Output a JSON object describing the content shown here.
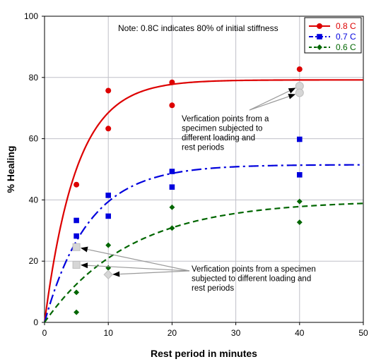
{
  "chart_data": {
    "type": "scatter",
    "xlabel": "Rest period in minutes",
    "ylabel": "% Healing",
    "xlim": [
      0,
      50
    ],
    "ylim": [
      0,
      100
    ],
    "xticks": [
      0,
      10,
      20,
      30,
      40,
      50
    ],
    "yticks": [
      0,
      20,
      40,
      60,
      80,
      100
    ],
    "grid": true,
    "legend_position": "top-right",
    "note": "Note: 0.8C indicates 80% of initial stiffness",
    "series": [
      {
        "name": "0.8 C",
        "color": "#dd0000",
        "marker": "circle",
        "line_style": "solid",
        "points": [
          {
            "x": 5,
            "y": 45.0
          },
          {
            "x": 10,
            "y": 75.7
          },
          {
            "x": 10,
            "y": 63.3
          },
          {
            "x": 20,
            "y": 78.4
          },
          {
            "x": 20,
            "y": 70.9
          },
          {
            "x": 40,
            "y": 82.7
          }
        ],
        "fit": {
          "asymptote": 79.2,
          "rate": 0.2
        }
      },
      {
        "name": "0.7 C",
        "color": "#0000dd",
        "marker": "square",
        "line_style": "dashdot",
        "points": [
          {
            "x": 5,
            "y": 33.3
          },
          {
            "x": 5,
            "y": 28.2
          },
          {
            "x": 10,
            "y": 41.5
          },
          {
            "x": 10,
            "y": 34.7
          },
          {
            "x": 20,
            "y": 49.3
          },
          {
            "x": 20,
            "y": 44.2
          },
          {
            "x": 40,
            "y": 59.8
          },
          {
            "x": 40,
            "y": 48.2
          }
        ],
        "fit": {
          "asymptote": 51.5,
          "rate": 0.145
        }
      },
      {
        "name": "0.6 C",
        "color": "#006600",
        "marker": "diamond",
        "line_style": "dashed",
        "points": [
          {
            "x": 5,
            "y": 9.8
          },
          {
            "x": 5,
            "y": 3.3
          },
          {
            "x": 10,
            "y": 25.2
          },
          {
            "x": 10,
            "y": 17.8
          },
          {
            "x": 20,
            "y": 37.6
          },
          {
            "x": 20,
            "y": 30.8
          },
          {
            "x": 40,
            "y": 39.5
          },
          {
            "x": 40,
            "y": 32.7
          }
        ],
        "fit": {
          "asymptote": 39.8,
          "rate": 0.075
        }
      }
    ],
    "verification_points": [
      {
        "x": 40,
        "y": 77.2,
        "shape": "circle"
      },
      {
        "x": 40,
        "y": 75.0,
        "shape": "circle"
      },
      {
        "x": 5,
        "y": 24.6,
        "shape": "square"
      },
      {
        "x": 5,
        "y": 18.8,
        "shape": "square"
      },
      {
        "x": 10,
        "y": 15.6,
        "shape": "diamond"
      }
    ],
    "annotations": [
      {
        "lines": [
          "Verfication points from a",
          "specimen subjected to",
          "different loading and",
          "rest periods"
        ],
        "targets": [
          0,
          1
        ]
      },
      {
        "lines": [
          "Verfication points from a specimen",
          "subjected to different loading and",
          "rest periods"
        ],
        "targets": [
          2,
          3,
          4
        ]
      }
    ]
  }
}
